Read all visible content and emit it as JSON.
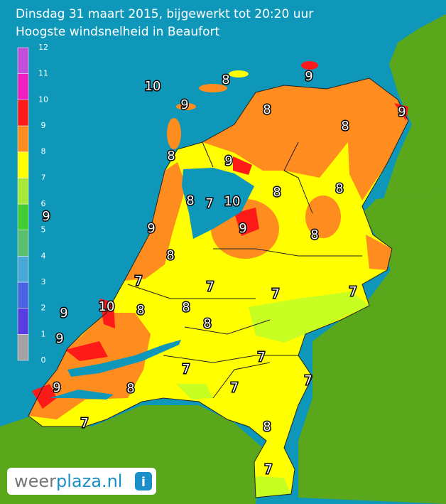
{
  "header": {
    "title": "Dinsdag 31 maart 2015, bijgewerkt tot 20:20 uur",
    "subtitle": "Hoogste windsnelheid in Beaufort"
  },
  "legend": {
    "ticks": [
      0,
      1,
      2,
      3,
      4,
      5,
      6,
      7,
      8,
      9,
      10,
      11,
      12
    ],
    "colors": [
      "#a3a3a3",
      "#5a3ce0",
      "#4a63e0",
      "#4aa8d6",
      "#58c070",
      "#44cc33",
      "#a8e838",
      "#ffff00",
      "#ff8c1e",
      "#ff1a1a",
      "#f020c0",
      "#c050d8"
    ]
  },
  "map_labels": [
    10,
    9,
    8,
    9,
    8,
    9,
    8,
    8,
    9,
    8,
    8,
    8,
    7,
    10,
    9,
    9,
    9,
    8,
    8,
    7,
    7,
    7,
    7,
    8,
    10,
    9,
    8,
    8,
    9,
    7,
    7,
    7,
    7,
    9,
    8,
    7,
    8,
    7
  ],
  "logo": {
    "part1": "weer",
    "part2": "plaza.nl",
    "icon": "i"
  }
}
